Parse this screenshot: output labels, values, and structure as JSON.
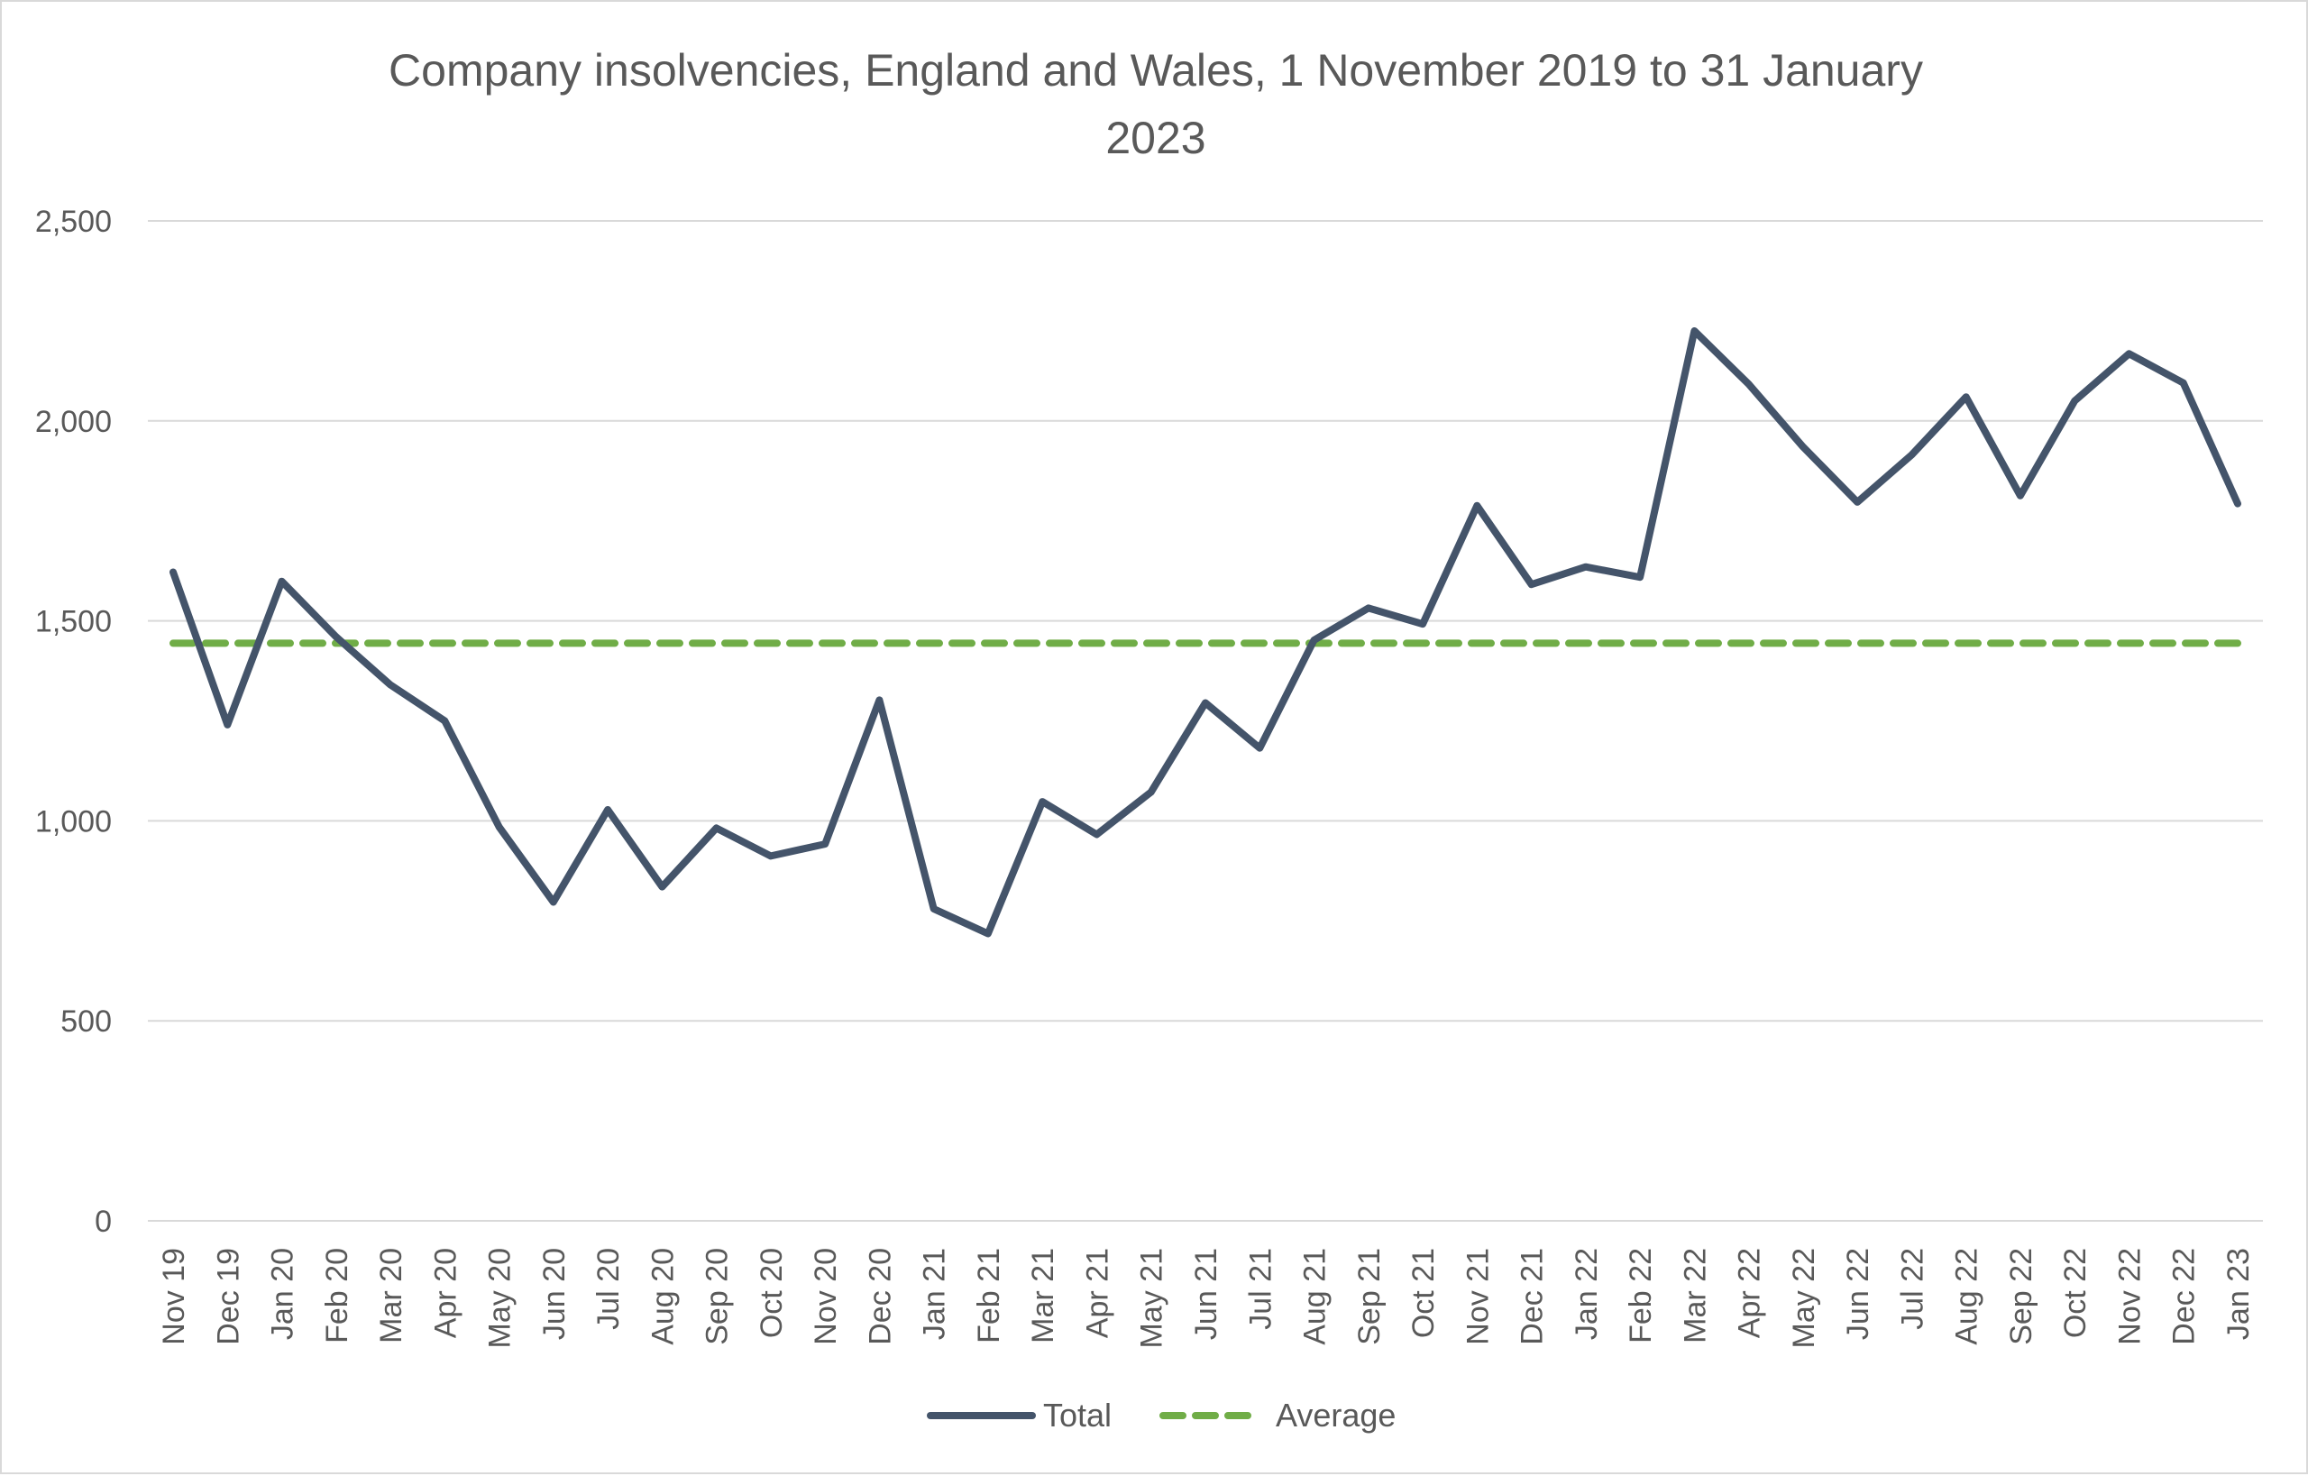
{
  "chart_data": {
    "type": "line",
    "title_lines": [
      "Company insolvencies, England and Wales, 1 November 2019 to 31 January",
      "2023"
    ],
    "xlabel": "",
    "ylabel": "",
    "ylim": [
      0,
      2500
    ],
    "yticks": [
      0,
      500,
      1000,
      1500,
      2000,
      2500
    ],
    "ytick_labels": [
      "0",
      "500",
      "1,000",
      "1,500",
      "2,000",
      "2,500"
    ],
    "grid": "horizontal",
    "legend_position": "bottom",
    "categories": [
      "Nov 19",
      "Dec 19",
      "Jan 20",
      "Feb 20",
      "Mar 20",
      "Apr 20",
      "May 20",
      "Jun 20",
      "Jul 20",
      "Aug 20",
      "Sep 20",
      "Oct 20",
      "Nov 20",
      "Dec 20",
      "Jan 21",
      "Feb 21",
      "Mar 21",
      "Apr 21",
      "May 21",
      "Jun 21",
      "Jul 21",
      "Aug 21",
      "Sep 21",
      "Oct 21",
      "Nov 21",
      "Dec 21",
      "Jan 22",
      "Feb 22",
      "Mar 22",
      "Apr 22",
      "May 22",
      "Jun 22",
      "Jul 22",
      "Aug 22",
      "Sep 22",
      "Oct 22",
      "Nov 22",
      "Dec 22",
      "Jan 23"
    ],
    "series": [
      {
        "name": "Total",
        "color": "#44546a",
        "style": "solid",
        "values": [
          1622,
          1240,
          1599,
          1460,
          1340,
          1250,
          985,
          797,
          1028,
          835,
          982,
          912,
          942,
          1302,
          780,
          718,
          1048,
          966,
          1072,
          1295,
          1182,
          1452,
          1532,
          1492,
          1788,
          1591,
          1635,
          1609,
          2225,
          2092,
          1935,
          1797,
          1915,
          2060,
          1813,
          2050,
          2168,
          2095,
          1793
        ]
      },
      {
        "name": "Average",
        "color": "#70ad47",
        "style": "dashed",
        "values": [
          1444,
          1444,
          1444,
          1444,
          1444,
          1444,
          1444,
          1444,
          1444,
          1444,
          1444,
          1444,
          1444,
          1444,
          1444,
          1444,
          1444,
          1444,
          1444,
          1444,
          1444,
          1444,
          1444,
          1444,
          1444,
          1444,
          1444,
          1444,
          1444,
          1444,
          1444,
          1444,
          1444,
          1444,
          1444,
          1444,
          1444,
          1444,
          1444
        ]
      }
    ]
  }
}
